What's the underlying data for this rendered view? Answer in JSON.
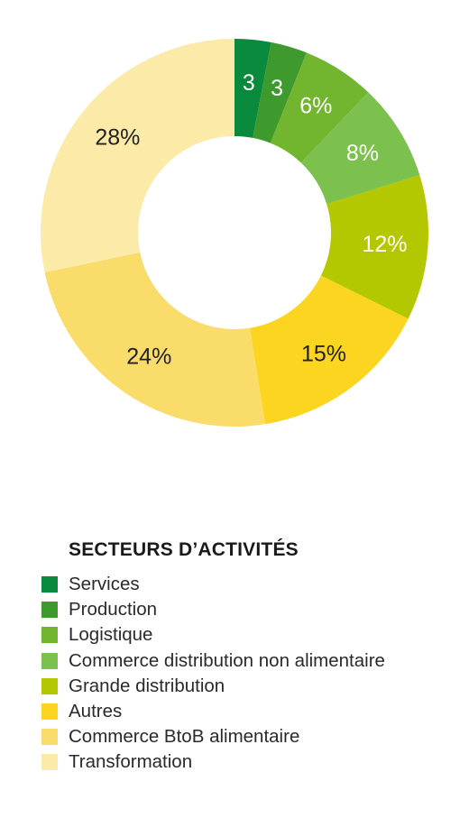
{
  "chart_data": {
    "type": "pie",
    "variant": "donut",
    "title": "SECTEURS D’ACTIVITÉS",
    "categories": [
      "Services",
      "Production",
      "Logistique",
      "Commerce distribution non alimentaire",
      "Grande distribution",
      "Autres",
      "Commerce BtoB alimentaire",
      "Transformation"
    ],
    "values": [
      3,
      3,
      6,
      8,
      12,
      15,
      24,
      28
    ],
    "labels": [
      "3",
      "3",
      "6%",
      "8%",
      "12%",
      "15%",
      "24%",
      "28%"
    ],
    "colors": [
      "#0a8a3c",
      "#3f9a2e",
      "#72b52e",
      "#7cc14e",
      "#b3c800",
      "#fcd520",
      "#f9dc6a",
      "#fbeaa8"
    ],
    "label_colors": [
      "#ffffff",
      "#ffffff",
      "#ffffff",
      "#ffffff",
      "#ffffff",
      "#222222",
      "#222222",
      "#222222"
    ],
    "legend_position": "bottom"
  }
}
